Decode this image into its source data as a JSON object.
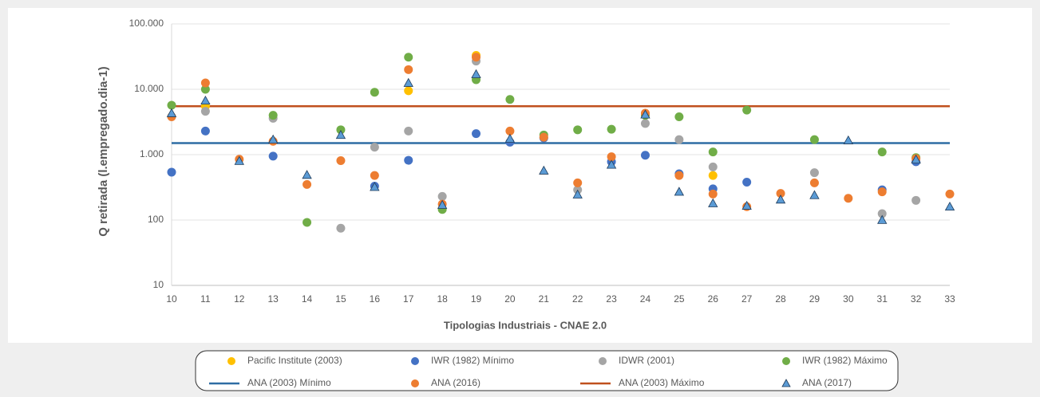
{
  "chart_data": {
    "type": "scatter",
    "x_label": "Tipologias Industriais - CNAE 2.0",
    "y_label": "Q retirada (l.empregado.dia-1)",
    "categories": [
      "10",
      "11",
      "12",
      "13",
      "14",
      "15",
      "16",
      "17",
      "18",
      "19",
      "20",
      "21",
      "22",
      "23",
      "24",
      "25",
      "26",
      "27",
      "28",
      "29",
      "30",
      "31",
      "32",
      "33"
    ],
    "log_scale": true,
    "ylim": [
      10,
      100000
    ],
    "yticks": [
      {
        "value": 10,
        "label": "10"
      },
      {
        "value": 100,
        "label": "100"
      },
      {
        "value": 1000,
        "label": "1.000"
      },
      {
        "value": 10000,
        "label": "10.000"
      },
      {
        "value": 100000,
        "label": "100.000"
      }
    ],
    "grid": true,
    "legend": "bottom",
    "series": [
      {
        "name": "Pacific Institute (2003)",
        "color": "#FFC000",
        "marker": "circle",
        "values": [
          null,
          5500,
          null,
          null,
          null,
          null,
          null,
          9500,
          null,
          33000,
          null,
          null,
          null,
          null,
          null,
          null,
          480,
          null,
          null,
          null,
          null,
          null,
          null,
          null
        ]
      },
      {
        "name": "IWR (1982) Mínimo",
        "color": "#4472C4",
        "marker": "circle",
        "values": [
          540,
          2300,
          null,
          950,
          null,
          null,
          330,
          820,
          null,
          2100,
          1550,
          1800,
          null,
          780,
          980,
          510,
          300,
          380,
          null,
          null,
          null,
          290,
          780,
          null
        ]
      },
      {
        "name": "IDWR (2001)",
        "color": "#A5A5A5",
        "marker": "circle",
        "values": [
          null,
          4600,
          null,
          3600,
          null,
          75,
          1300,
          2300,
          230,
          27000,
          null,
          null,
          290,
          null,
          3000,
          1700,
          650,
          null,
          null,
          530,
          null,
          125,
          200,
          null
        ]
      },
      {
        "name": "IWR (1982) Máximo",
        "color": "#70AD47",
        "marker": "circle",
        "values": [
          5700,
          10000,
          null,
          4000,
          92,
          2400,
          9000,
          31000,
          145,
          14000,
          7000,
          2000,
          2400,
          2450,
          4000,
          3800,
          1100,
          4800,
          null,
          1700,
          null,
          1100,
          900,
          null
        ]
      },
      {
        "name": "ANA (2003) Mínimo",
        "color": "#2E6DA4",
        "marker": "hline",
        "value": 1500
      },
      {
        "name": "ANA (2016)",
        "color": "#ED7D31",
        "marker": "circle",
        "values": [
          3800,
          12500,
          850,
          1600,
          350,
          810,
          480,
          20000,
          175,
          31000,
          2300,
          1850,
          370,
          930,
          4300,
          480,
          250,
          160,
          255,
          370,
          215,
          270,
          870,
          250
        ]
      },
      {
        "name": "ANA (2003) Máximo",
        "color": "#C0501E",
        "marker": "hline",
        "value": 5500
      },
      {
        "name": "ANA (2017)",
        "color": "#5B9BD5",
        "marker": "triangle",
        "values": [
          4300,
          6700,
          800,
          1700,
          490,
          2000,
          320,
          12500,
          170,
          17000,
          1750,
          570,
          245,
          700,
          4100,
          270,
          180,
          165,
          205,
          240,
          1650,
          100,
          840,
          160
        ]
      }
    ]
  }
}
